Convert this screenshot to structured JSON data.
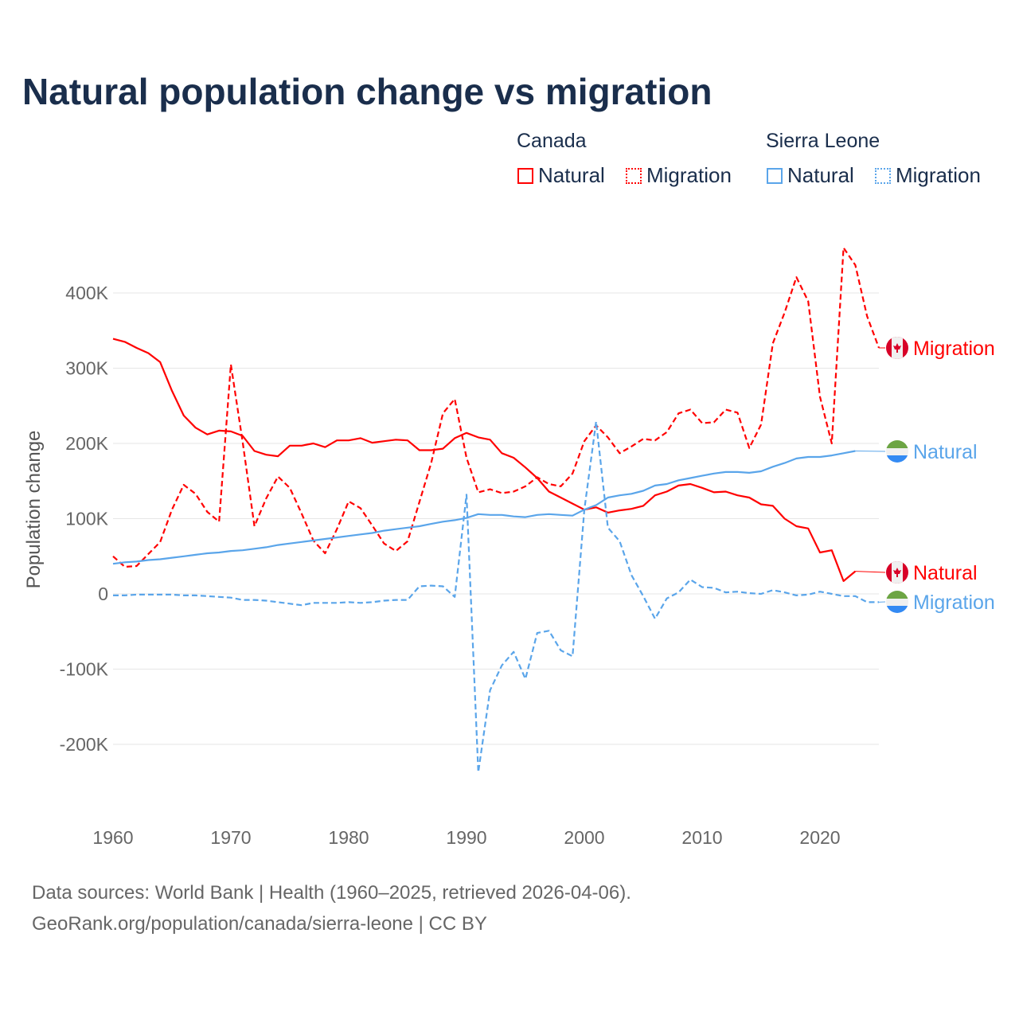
{
  "title": "Natural population change vs migration",
  "legend": {
    "groups": [
      {
        "name": "Canada",
        "natural": "Natural",
        "migration": "Migration",
        "color": "#ff0000"
      },
      {
        "name": "Sierra Leone",
        "natural": "Natural",
        "migration": "Migration",
        "color": "#5aa5ea"
      }
    ]
  },
  "footer": {
    "line1": "Data sources: World Bank | Health (1960–2025, retrieved 2026-04-06).",
    "line2": "GeoRank.org/population/canada/sierra-leone | CC BY"
  },
  "chart_data": {
    "type": "line",
    "title": "Natural population change vs migration",
    "xlabel": "",
    "ylabel": "Population change",
    "xlim": [
      1960,
      2025
    ],
    "ylim": [
      -250000,
      480000
    ],
    "x_ticks": [
      "1960",
      "1970",
      "1980",
      "1990",
      "2000",
      "2010",
      "2020"
    ],
    "y_ticks": [
      {
        "v": -200000,
        "label": "-200K"
      },
      {
        "v": -100000,
        "label": "-100K"
      },
      {
        "v": 0,
        "label": "0"
      },
      {
        "v": 100000,
        "label": "100K"
      },
      {
        "v": 200000,
        "label": "200K"
      },
      {
        "v": 300000,
        "label": "300K"
      },
      {
        "v": 400000,
        "label": "400K"
      }
    ],
    "grid": true,
    "start_year": 1960,
    "unit": 1000,
    "series": [
      {
        "name": "Canada Natural",
        "end_label": "Natural",
        "color": "#ff0000",
        "dashed": false,
        "flag": "canada",
        "values": [
          339,
          335,
          327,
          320,
          308,
          270,
          237,
          221,
          212,
          217,
          216,
          210,
          190,
          185,
          183,
          197,
          197,
          200,
          195,
          204,
          204,
          207,
          201,
          203,
          205,
          204,
          191,
          191,
          193,
          207,
          214,
          208,
          205,
          187,
          181,
          168,
          154,
          136,
          128,
          120,
          112,
          115,
          108,
          111,
          113,
          117,
          131,
          136,
          144,
          146,
          141,
          135,
          136,
          131,
          128,
          119,
          117,
          100,
          90,
          87,
          55,
          58,
          17,
          30,
          null,
          null
        ]
      },
      {
        "name": "Canada Migration",
        "end_label": "Migration",
        "color": "#ff0000",
        "dashed": true,
        "flag": "canada",
        "values": [
          50,
          36,
          37,
          53,
          69,
          112,
          145,
          133,
          109,
          96,
          305,
          202,
          90,
          127,
          156,
          141,
          107,
          71,
          54,
          86,
          123,
          114,
          91,
          67,
          57,
          70,
          122,
          174,
          240,
          259,
          181,
          135,
          139,
          134,
          136,
          143,
          155,
          146,
          143,
          160,
          203,
          224,
          208,
          187,
          196,
          206,
          204,
          215,
          240,
          245,
          227,
          228,
          245,
          241,
          194,
          225,
          333,
          374,
          421,
          389,
          262,
          200,
          460,
          437,
          369,
          327
        ]
      },
      {
        "name": "Sierra Leone Natural",
        "end_label": "Natural",
        "color": "#5aa5ea",
        "dashed": false,
        "flag": "sierra-leone",
        "values": [
          40,
          42,
          43,
          45,
          46,
          48,
          50,
          52,
          54,
          55,
          57,
          58,
          60,
          62,
          65,
          67,
          69,
          71,
          73,
          75,
          77,
          79,
          81,
          84,
          86,
          88,
          90,
          93,
          96,
          98,
          101,
          106,
          105,
          105,
          103,
          102,
          105,
          106,
          105,
          104,
          112,
          118,
          128,
          131,
          133,
          137,
          144,
          146,
          151,
          154,
          157,
          160,
          162,
          162,
          161,
          163,
          169,
          174,
          180,
          182,
          182,
          184,
          187,
          190,
          null,
          null
        ]
      },
      {
        "name": "Sierra Leone Migration",
        "end_label": "Migration",
        "color": "#5aa5ea",
        "dashed": true,
        "flag": "sierra-leone",
        "values": [
          -2,
          -2,
          -1,
          -1,
          -1,
          -1,
          -2,
          -2,
          -3,
          -4,
          -5,
          -8,
          -8,
          -9,
          -11,
          -13,
          -15,
          -12,
          -12,
          -12,
          -11,
          -12,
          -11,
          -9,
          -8,
          -8,
          10,
          11,
          10,
          -4,
          132,
          -237,
          -128,
          -95,
          -77,
          -113,
          -52,
          -49,
          -75,
          -83,
          112,
          229,
          88,
          70,
          25,
          -3,
          -33,
          -6,
          2,
          19,
          9,
          8,
          2,
          3,
          1,
          0,
          5,
          2,
          -2,
          -1,
          3,
          0,
          -3,
          -3,
          -11,
          -11
        ]
      }
    ]
  }
}
